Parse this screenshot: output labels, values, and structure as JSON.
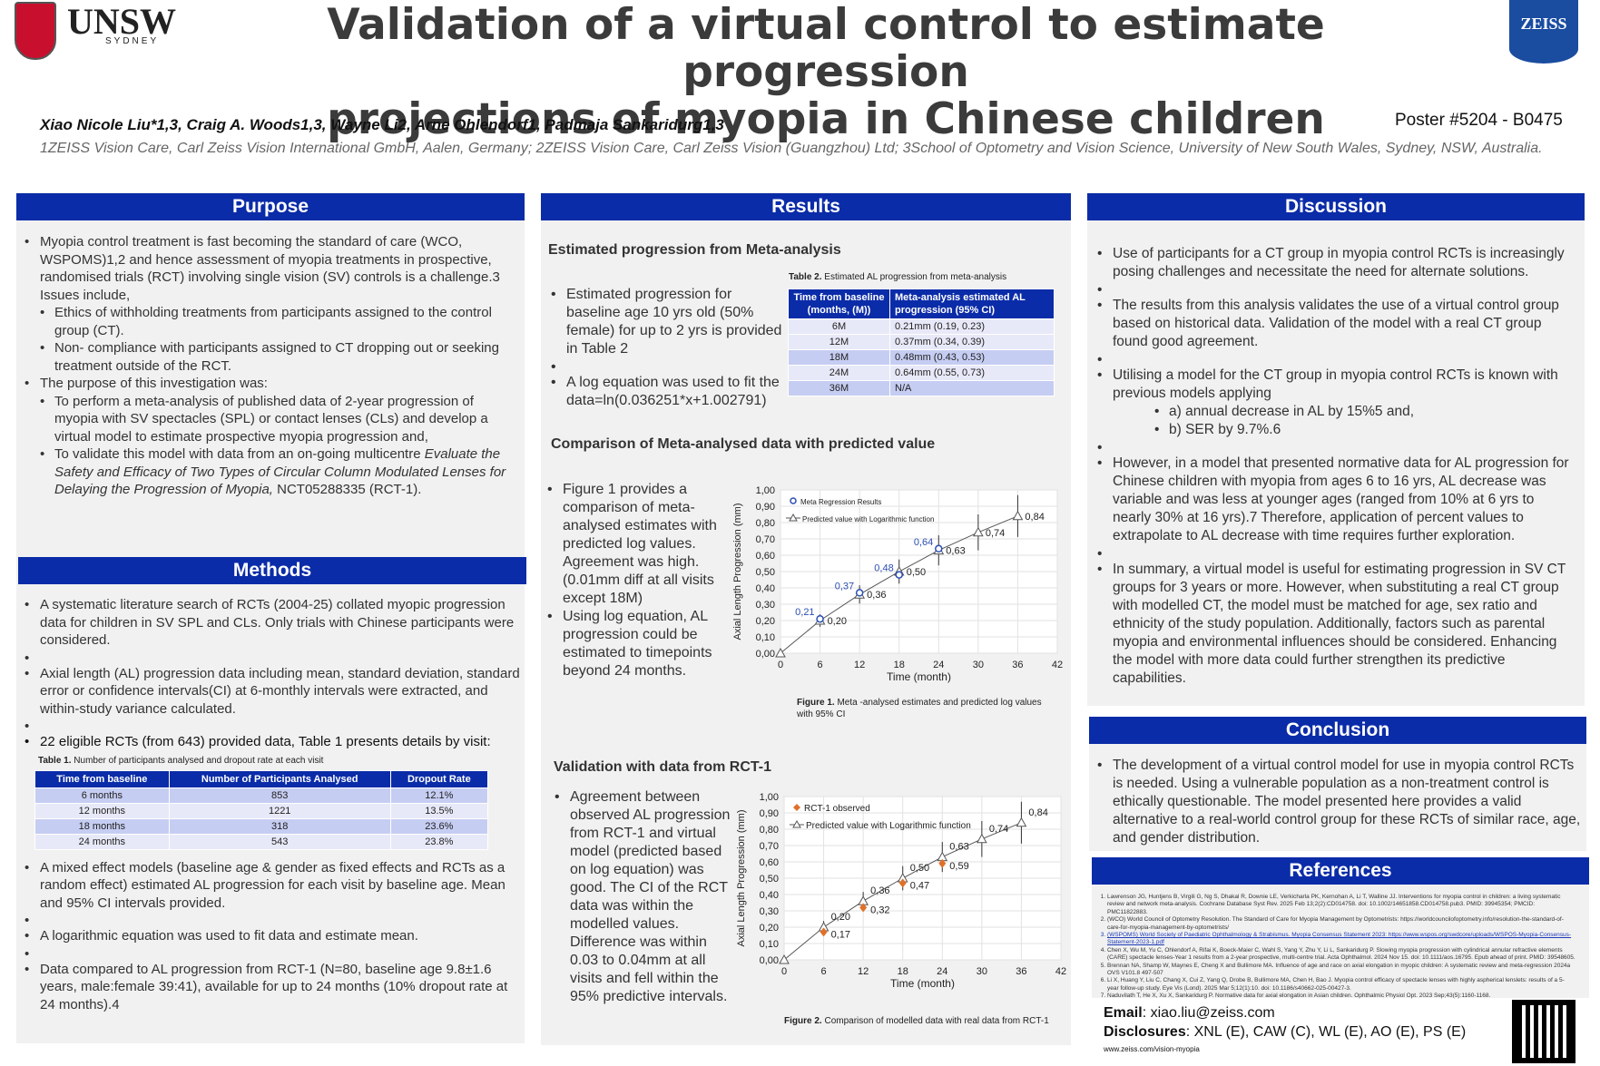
{
  "header": {
    "title": "Validation of a virtual control to estimate progression\nprojections of myopia in Chinese children",
    "unsw_word": "UNSW",
    "unsw_city": "SYDNEY",
    "zeiss_word": "ZEISS",
    "authors": "Xiao Nicole Liu*1,3, Craig A. Woods1,3, Wayne Li2, Arne Ohlendorf1, Padmaja Sankaridurg1,3",
    "affiliations": "1ZEISS Vision Care, Carl Zeiss Vision International GmbH, Aalen, Germany; 2ZEISS Vision Care, Carl Zeiss Vision (Guangzhou) Ltd; 3School of Optometry and Vision Science, University of New South Wales, Sydney, NSW, Australia.",
    "poster_id": "Poster #5204 - B0475"
  },
  "purpose": {
    "heading": "Purpose",
    "b1": "Myopia control treatment is fast becoming the standard of care (WCO, WSPOMS)1,2 and hence assessment of myopia treatments in prospective, randomised trials (RCT) involving single vision (SV) controls is a challenge.3 Issues include,",
    "b1_s1": "Ethics of withholding treatments from participants assigned to the control group (CT).",
    "b1_s2": "Non- compliance with participants assigned to CT dropping out or seeking treatment outside of the RCT.",
    "b2": "The purpose of this investigation was:",
    "b2_s1": "To perform a meta-analysis of published data of 2-year progression of myopia with SV spectacles (SPL) or contact lenses (CLs) and develop a virtual model to estimate prospective myopia progression and,",
    "b2_s2a": "To validate this model with data from an on-going multicentre",
    "b2_s2b": "Evaluate the Safety and Efficacy of Two Types of Circular Column Modulated Lenses for Delaying the Progression of Myopia,",
    "b2_s2c": "NCT05288335 (RCT-1)."
  },
  "methods": {
    "heading": "Methods",
    "b1": "A systematic literature search of RCTs (2004-25) collated myopic progression data for children in SV SPL and CLs. Only trials with Chinese participants were considered.",
    "b2": "Axial length (AL) progression data including mean, standard deviation, standard error or confidence intervals(CI) at 6-monthly intervals were extracted, and within-study variance calculated.",
    "b3": "22 eligible RCTs (from 643) provided data, Table 1 presents details by visit:",
    "table_cap_b": "Table 1.",
    "table_cap": "Number of participants analysed and dropout rate at each visit",
    "table_headers": [
      "Time from baseline",
      "Number of Participants Analysed",
      "Dropout Rate"
    ],
    "table_rows": [
      [
        "6 months",
        "853",
        "12.1%"
      ],
      [
        "12 months",
        "1221",
        "13.5%"
      ],
      [
        "18 months",
        "318",
        "23.6%"
      ],
      [
        "24 months",
        "543",
        "23.8%"
      ]
    ],
    "b4": "A mixed effect models (baseline age & gender as fixed effects and RCTs as a random effect) estimated AL progression for each visit by baseline age. Mean and 95% CI intervals provided.",
    "b5": "A logarithmic equation was used to fit data and estimate mean.",
    "b6": "Data compared to AL progression from RCT-1 (N=80, baseline age 9.8±1.6 years, male:female 39:41), available for up to 24 months (10% dropout rate at 24 months).4"
  },
  "results": {
    "heading": "Results",
    "sub1": "Estimated progression from Meta-analysis",
    "s1_b1": "Estimated progression for baseline age 10 yrs old (50% female) for up to 2 yrs is provided in Table 2",
    "s1_b2": "A log equation was used to fit the data=ln(0.036251*x+1.002791)",
    "t2_cap_b": "Table 2.",
    "t2_cap": "Estimated AL progression from meta-analysis",
    "t2_headers": [
      "Time from baseline (months, (M))",
      "Meta-analysis estimated AL progression (95% CI)"
    ],
    "t2_rows": [
      [
        "6M",
        "0.21mm (0.19, 0.23)"
      ],
      [
        "12M",
        "0.37mm (0.34, 0.39)"
      ],
      [
        "18M",
        "0.48mm (0.43, 0.53)"
      ],
      [
        "24M",
        "0.64mm (0.55, 0.73)"
      ],
      [
        "36M",
        "N/A"
      ]
    ],
    "sub2": "Comparison of Meta-analysed data with predicted value",
    "s2_b1": "Figure 1 provides a comparison of meta-analysed estimates with predicted log values. Agreement was high. (0.01mm diff at all visits except 18M)",
    "s2_b2": "Using log equation, AL progression could be estimated to timepoints beyond 24 months.",
    "f1_cap_b": "Figure 1.",
    "f1_cap": "Meta -analysed estimates and predicted log values with 95% CI",
    "sub3": "Validation with data from RCT-1",
    "s3_b1": "Agreement between observed AL progression from RCT-1 and virtual model (predicted based on log equation) was good. The CI of the RCT data was within the modelled values. Difference was within 0.03 to 0.04mm at all visits and fell within the 95% predictive intervals.",
    "f2_cap_b": "Figure 2.",
    "f2_cap": "Comparison of modelled data with real data from RCT-1"
  },
  "discussion": {
    "heading": "Discussion",
    "b1": "Use of participants for a CT group in myopia control RCTs is increasingly posing challenges and necessitate the need for alternate solutions.",
    "b2": "The results from this analysis validates the use of a virtual control group based on historical data. Validation of the model with a real CT group found good agreement.",
    "b3": "Utilising a model for the CT group in myopia control RCTs is known with previous models applying",
    "b3_s1": "a) annual decrease in AL by 15%5 and,",
    "b3_s2": "b) SER by 9.7%.6",
    "b4": "However, in a model that presented normative data for AL progression for Chinese children with myopia from ages 6 to 16 yrs, AL decrease was variable and was less at younger ages (ranged from 10% at 6 yrs to nearly 30% at 16 yrs).7 Therefore, application of percent values to extrapolate to AL decrease with time requires further exploration.",
    "b5": "In summary, a virtual model is useful for estimating progression in SV CT groups for 3 years or more. However, when substituting a real CT group with modelled CT, the model must be matched for age, sex ratio and ethnicity of the study population. Additionally, factors such as parental myopia and environmental influences should be considered. Enhancing the model with more data could further strengthen its predictive capabilities."
  },
  "conclusion": {
    "heading": "Conclusion",
    "b1": "The development of a virtual control model for use in myopia control RCTs is needed. Using a vulnerable population as a non-treatment control is ethically questionable. The model presented here provides a valid alternative to a real-world control group for these RCTs of similar race, age, and gender distribution."
  },
  "references": {
    "heading": "References",
    "items": [
      "Lawrenson JG, Huntjens B, Virgili G, Ng S, Dhakal R, Downie LE, Verkicharla PK, Kernohan A, Li T, Walline JJ. Interventions for myopia control in children: a living systematic review and network meta-analysis. Cochrane Database Syst Rev. 2025 Feb 13;2(2):CD014758. doi: 10.1002/14651858.CD014758.pub3. PMID: 39945354; PMCID: PMC11822883.",
      "(WCO) World Council of Optometry Resolution. The Standard of Care for Myopia Management by Optometrists: https://worldcouncilofoptometry.info/resolution-the-standard-of-care-for-myopia-management-by-optometrists/",
      "(WSPOMS) World Society of Paediatric Ophthalmology & Strabismus. Myopia Consensus Statement 2023: https://www.wspos.org/swdcore/uploads/WSPOS-Myopia-Consensus-Statement-2023-1.pdf",
      "Chen X, Wu M, Yu C, Ohlendorf A, Rifai K, Boeck-Maier C, Wahl S, Yang Y, Zhu Y, Li L, Sankaridurg P. Slowing myopia progression with cylindrical annular refractive elements (CARE) spectacle lenses-Year 1 results from a 2-year prospective, multi-centre trial. Acta Ophthalmol. 2024 Nov 15. doi: 10.1111/aos.16795. Epub ahead of print. PMID: 39548605.",
      "Brennan NA, Shamp W, Maynes E, Cheng X and Bullimore MA. Influence of age and race on axial elongation in myopic children: A systematic review and meta-regression 2024a OVS V101.8 497-507",
      "Li X, Huang Y, Liu C, Chang X, Cui Z, Yang Q, Drobe B, Bullimore MA, Chen H, Bao J. Myopia control efficacy of spectacle lenses with highly aspherical lenslets: results of a 5-year follow-up study. Eye Vis (Lond). 2025 Mar 5;12(1):10. doi: 10.1186/s40662-025-00427-3.",
      "Naduvilath T, He X, Xu X, Sankaridurg P. Normative data for axial elongation in Asian children. Ophthalmic Physiol Opt. 2023 Sep;43(5):1160-1168."
    ]
  },
  "contact": {
    "email_label": "Email",
    "email": ": xiao.liu@zeiss.com",
    "disc_label": "Disclosures",
    "disc": ": XNL (E), CAW (C), WL (E), AO (E), PS (E)",
    "url": "www.zeiss.com/vision-myopia"
  },
  "chart_data": [
    {
      "type": "scatter",
      "name_ref": "figure1",
      "ylabel": "Axial Length Progression (mm)",
      "xlabel": "Time (month)",
      "xlim": [
        0,
        42
      ],
      "ylim": [
        0,
        1
      ],
      "xticks": [
        "0",
        "6",
        "12",
        "18",
        "24",
        "30",
        "36",
        "42"
      ],
      "yticks": [
        "0,00",
        "0,10",
        "0,20",
        "0,30",
        "0,40",
        "0,50",
        "0,60",
        "0,70",
        "0,80",
        "0,90",
        "1,00"
      ],
      "series": [
        {
          "name": "Meta Regression Results",
          "x": [
            6,
            12,
            18,
            24
          ],
          "y": [
            0.21,
            0.37,
            0.48,
            0.64
          ],
          "labels": [
            "0,21",
            "0,37",
            "0,48",
            "0,64"
          ],
          "color": "#2b4eb3"
        },
        {
          "name": "Predicted value with Logarithmic function",
          "x": [
            0,
            6,
            12,
            18,
            24,
            30,
            36
          ],
          "y": [
            0,
            0.2,
            0.36,
            0.5,
            0.63,
            0.74,
            0.84
          ],
          "labels": [
            "",
            "0,20",
            "0,36",
            "0,50",
            "0,63",
            "0,74",
            "0,84"
          ],
          "color": "#444444"
        }
      ]
    },
    {
      "type": "scatter",
      "name_ref": "figure2",
      "ylabel": "Axial Length Progression (mm)",
      "xlabel": "Time (month)",
      "xlim": [
        0,
        42
      ],
      "ylim": [
        0,
        1
      ],
      "xticks": [
        "0",
        "6",
        "12",
        "18",
        "24",
        "30",
        "36",
        "42"
      ],
      "yticks": [
        "0,00",
        "0,10",
        "0,20",
        "0,30",
        "0,40",
        "0,50",
        "0,60",
        "0,70",
        "0,80",
        "0,90",
        "1,00"
      ],
      "series": [
        {
          "name": "RCT-1 observed",
          "x": [
            6,
            12,
            18,
            24
          ],
          "y": [
            0.17,
            0.32,
            0.47,
            0.59
          ],
          "labels": [
            "0,17",
            "0,32",
            "0,47",
            "0,59"
          ],
          "color": "#e0712a"
        },
        {
          "name": "Predicted value with Logarithmic function",
          "x": [
            0,
            6,
            12,
            18,
            24,
            30,
            36
          ],
          "y": [
            0,
            0.2,
            0.36,
            0.5,
            0.63,
            0.74,
            0.84
          ],
          "labels": [
            "",
            "0,20",
            "0,36",
            "0,50",
            "0,63",
            "0,74",
            "0,84"
          ],
          "color": "#444444"
        }
      ]
    }
  ]
}
